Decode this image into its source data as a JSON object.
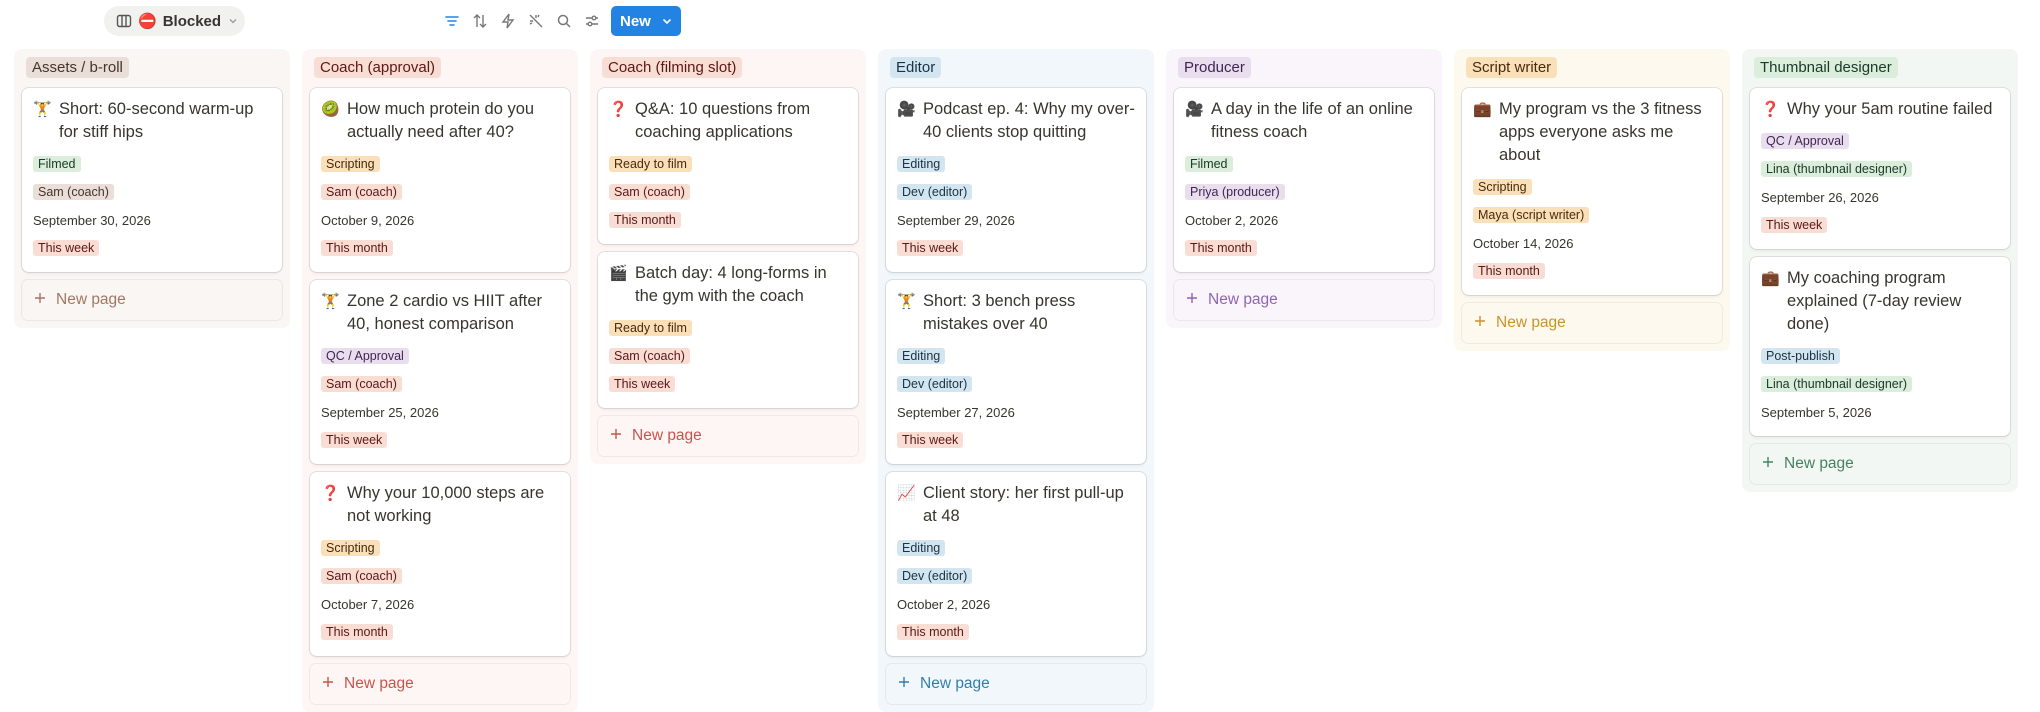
{
  "toolbar": {
    "view_icon": "⛔",
    "view": "Blocked",
    "new_button": "New"
  },
  "columns": [
    {
      "name": "Assets / b-roll",
      "color": "brown",
      "new_page": "New page",
      "cards": [
        {
          "icon": "🏋️",
          "title": "Short: 60-second warm-up for stiff hips",
          "status": "Filmed",
          "status_color": "green",
          "person": "Sam (coach)",
          "date": "September 30, 2026",
          "when": "This week"
        }
      ]
    },
    {
      "name": "Coach (approval)",
      "color": "red",
      "new_page": "New page",
      "cards": [
        {
          "icon": "🥝",
          "title": "How much protein do you actually need after 40?",
          "status": "Scripting",
          "status_color": "orange",
          "person": "Sam (coach)",
          "date": "October 9, 2026",
          "when": "This month"
        },
        {
          "icon": "🏋️",
          "title": "Zone 2 cardio vs HIIT after 40, honest comparison",
          "status": "QC / Approval",
          "status_color": "purple",
          "person": "Sam (coach)",
          "date": "September 25, 2026",
          "when": "This week"
        },
        {
          "icon": "❓",
          "title": "Why your 10,000 steps are not working",
          "status": "Scripting",
          "status_color": "orange",
          "person": "Sam (coach)",
          "date": "October 7, 2026",
          "when": "This month"
        }
      ]
    },
    {
      "name": "Coach (filming slot)",
      "color": "red",
      "new_page": "New page",
      "cards": [
        {
          "icon": "❓",
          "title": "Q&A: 10 questions from coaching applications",
          "status": "Ready to film",
          "status_color": "orange",
          "person": "Sam (coach)",
          "when": "This month"
        },
        {
          "icon": "🎬",
          "title": "Batch day: 4 long-forms in the gym with the coach",
          "status": "Ready to film",
          "status_color": "orange",
          "person": "Sam (coach)",
          "when": "This week"
        }
      ]
    },
    {
      "name": "Editor",
      "color": "blue",
      "new_page": "New page",
      "cards": [
        {
          "icon": "🎥",
          "title": "Podcast ep. 4: Why my over-40 clients stop quitting",
          "status": "Editing",
          "status_color": "blue",
          "person": "Dev (editor)",
          "date": "September 29, 2026",
          "when": "This week"
        },
        {
          "icon": "🏋️",
          "title": "Short: 3 bench press mistakes over 40",
          "status": "Editing",
          "status_color": "blue",
          "person": "Dev (editor)",
          "date": "September 27, 2026",
          "when": "This week"
        },
        {
          "icon": "📈",
          "title": "Client story: her first pull-up at 48",
          "status": "Editing",
          "status_color": "blue",
          "person": "Dev (editor)",
          "date": "October 2, 2026",
          "when": "This month"
        }
      ]
    },
    {
      "name": "Producer",
      "color": "purple",
      "new_page": "New page",
      "cards": [
        {
          "icon": "🎥",
          "title": "A day in the life of an online fitness coach",
          "status": "Filmed",
          "status_color": "green",
          "person": "Priya (producer)",
          "date": "October 2, 2026",
          "when": "This month"
        }
      ]
    },
    {
      "name": "Script writer",
      "color": "orange",
      "new_page": "New page",
      "cards": [
        {
          "icon": "💼",
          "title": "My program vs the 3 fitness apps everyone asks me about",
          "status": "Scripting",
          "status_color": "orange",
          "person": "Maya (script writer)",
          "date": "October 14, 2026",
          "when": "This month"
        }
      ]
    },
    {
      "name": "Thumbnail designer",
      "color": "green",
      "new_page": "New page",
      "cards": [
        {
          "icon": "❓",
          "title": "Why your 5am routine failed",
          "status": "QC / Approval",
          "status_color": "purple",
          "person": "Lina (thumbnail designer)",
          "date": "September 26, 2026",
          "when": "This week"
        },
        {
          "icon": "💼",
          "title": "My coaching program explained (7-day review done)",
          "status": "Post-publish",
          "status_color": "blue",
          "person": "Lina (thumbnail designer)",
          "date": "September 5, 2026"
        }
      ]
    }
  ]
}
